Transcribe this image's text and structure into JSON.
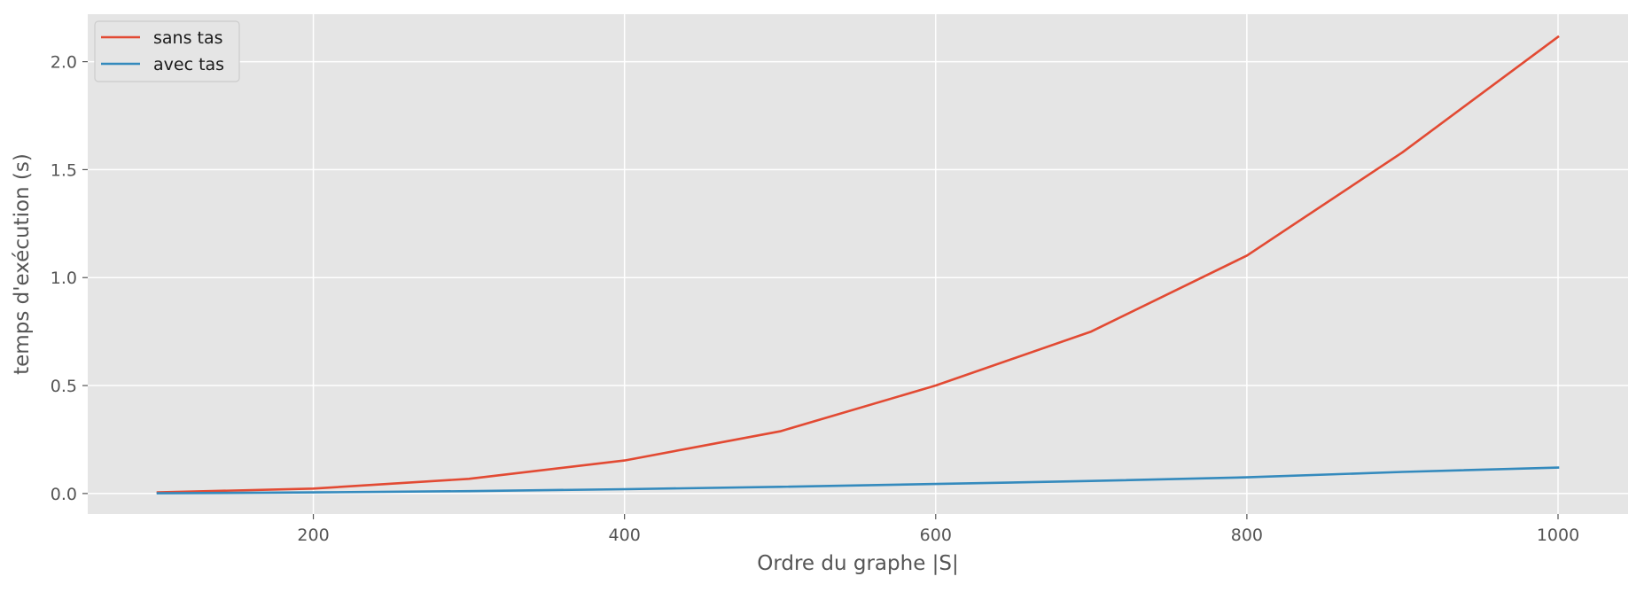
{
  "chart_data": {
    "type": "line",
    "xlabel": "Ordre du graphe |S|",
    "ylabel": "temps d'exécution (s)",
    "x": [
      100,
      200,
      300,
      400,
      500,
      600,
      700,
      800,
      900,
      1000
    ],
    "series": [
      {
        "name": "sans tas",
        "color": "#E24A33",
        "values": [
          0.005,
          0.023,
          0.068,
          0.153,
          0.288,
          0.5,
          0.75,
          1.102,
          1.58,
          2.115
        ]
      },
      {
        "name": "avec tas",
        "color": "#348ABD",
        "values": [
          0.001,
          0.005,
          0.011,
          0.02,
          0.031,
          0.044,
          0.058,
          0.075,
          0.1,
          0.12
        ]
      }
    ],
    "xlim": [
      55,
      1045
    ],
    "ylim": [
      -0.095,
      2.22
    ],
    "xticks": [
      200,
      400,
      600,
      800,
      1000
    ],
    "xtick_labels": [
      "200",
      "400",
      "600",
      "800",
      "1000"
    ],
    "yticks": [
      0.0,
      0.5,
      1.0,
      1.5,
      2.0
    ],
    "ytick_labels": [
      "0.0",
      "0.5",
      "1.0",
      "1.5",
      "2.0"
    ],
    "grid": true,
    "legend_position": "top-left",
    "background_color": "#E5E5E5",
    "grid_color": "#FFFFFF"
  }
}
